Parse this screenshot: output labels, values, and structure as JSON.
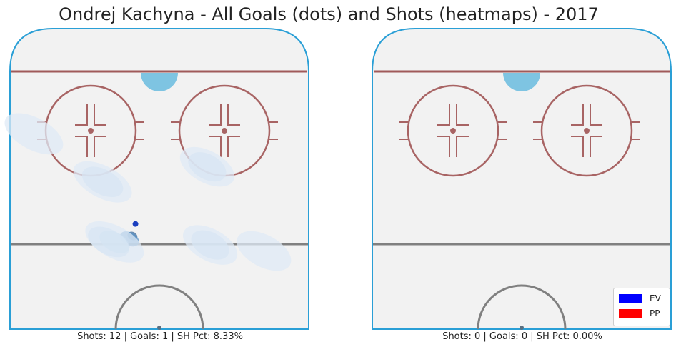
{
  "title": "Ondrej Kachyna - All Goals (dots) and Shots (heatmaps) - 2017",
  "chart_data": [
    {
      "type": "heatmap",
      "panel": "left",
      "caption": "Shots: 12 | Goals: 1 | SH Pct: 8.33%",
      "shots": 12,
      "goals": 1,
      "sh_pct": "8.33%",
      "goal_points": [
        {
          "x": -58,
          "y": 65,
          "strength": "EV"
        }
      ],
      "shot_density_regions": [
        {
          "x": -59,
          "y": 69,
          "level": 5
        },
        {
          "x": -60,
          "y": 70,
          "level": 4
        },
        {
          "x": -65,
          "y": 71,
          "level": 3
        },
        {
          "x": -67,
          "y": 71,
          "level": 2
        },
        {
          "x": -65,
          "y": 71,
          "level": 1
        },
        {
          "x": -33,
          "y": 72,
          "level": 2
        },
        {
          "x": -33,
          "y": 72,
          "level": 1
        },
        {
          "x": -69,
          "y": 51,
          "level": 2
        },
        {
          "x": -69,
          "y": 51,
          "level": 1
        },
        {
          "x": -34,
          "y": 46,
          "level": 2
        },
        {
          "x": -34,
          "y": 46,
          "level": 1
        },
        {
          "x": -92,
          "y": 35,
          "level": 1
        },
        {
          "x": -15,
          "y": 74,
          "level": 1
        }
      ]
    },
    {
      "type": "heatmap",
      "panel": "right",
      "caption": "Shots: 0 | Goals: 0 | SH Pct: 0.00%",
      "shots": 0,
      "goals": 0,
      "sh_pct": "0.00%",
      "goal_points": [],
      "shot_density_regions": []
    }
  ],
  "legend": {
    "position": "bottom-right",
    "items": [
      {
        "label": "EV",
        "color": "#0000ff"
      },
      {
        "label": "PP",
        "color": "#ff0000"
      }
    ]
  },
  "colors": {
    "rink_fill": "#f2f2f2",
    "boards": "#2a9fd6",
    "goal_line": "#a05a5a",
    "faceoff": "#a86464",
    "blue_line": "#808080",
    "crease": "#7ec4e2",
    "heat": [
      "#dfeaf5",
      "#c2d9ed",
      "#94bfe0",
      "#5a93c7",
      "#3f6e9e"
    ],
    "goal_dot": "#1a3fbf"
  }
}
